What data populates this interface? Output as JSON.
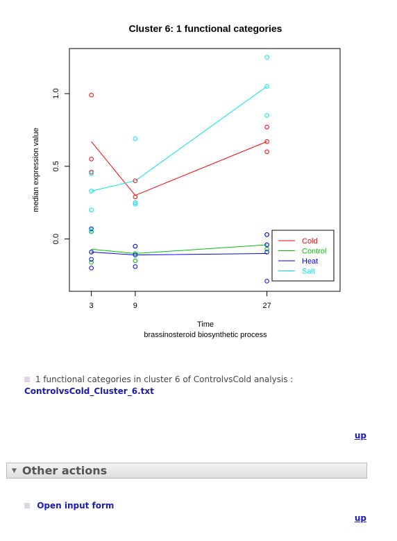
{
  "chart_data": {
    "type": "line",
    "title": "Cluster 6: 1 functional categories",
    "xlabel": "Time",
    "xsublabel": "brassinosteroid biosynthetic process",
    "ylabel": "median expression value",
    "x_ticks": [
      3,
      9,
      27
    ],
    "y_ticks": [
      0.0,
      0.5,
      1.0
    ],
    "y_tick_labels": [
      "0.0",
      "0.5",
      "1.0"
    ],
    "xlim": [
      0,
      37
    ],
    "ylim": [
      -0.36,
      1.31
    ],
    "legend_position": "bottom-right",
    "series": [
      {
        "name": "Cold",
        "color": "#ff0000",
        "line": [
          0.67,
          0.3,
          0.67
        ],
        "points": [
          [
            3,
            0.99
          ],
          [
            3,
            0.55
          ],
          [
            3,
            0.46
          ],
          [
            9,
            0.4
          ],
          [
            9,
            0.29
          ],
          [
            27,
            0.77
          ],
          [
            27,
            0.67
          ],
          [
            27,
            0.6
          ]
        ]
      },
      {
        "name": "Control",
        "color": "#00c000",
        "line": [
          -0.07,
          -0.1,
          -0.04
        ],
        "points": [
          [
            3,
            0.05
          ],
          [
            3,
            -0.09
          ],
          [
            3,
            -0.16
          ],
          [
            9,
            -0.05
          ],
          [
            9,
            -0.1
          ],
          [
            9,
            -0.15
          ],
          [
            27,
            0.03
          ],
          [
            27,
            -0.04
          ],
          [
            27,
            -0.07
          ]
        ]
      },
      {
        "name": "Heat",
        "color": "#0000ff",
        "line": [
          -0.09,
          -0.11,
          -0.1
        ],
        "points": [
          [
            3,
            0.07
          ],
          [
            3,
            -0.09
          ],
          [
            3,
            -0.14
          ],
          [
            3,
            -0.2
          ],
          [
            9,
            -0.05
          ],
          [
            9,
            -0.11
          ],
          [
            9,
            -0.19
          ],
          [
            27,
            0.03
          ],
          [
            27,
            -0.04
          ],
          [
            27,
            -0.09
          ],
          [
            27,
            -0.29
          ]
        ]
      },
      {
        "name": "Salt",
        "color": "#00e5ee",
        "line": [
          0.33,
          0.4,
          1.05
        ],
        "points": [
          [
            3,
            0.45
          ],
          [
            3,
            0.33
          ],
          [
            3,
            0.2
          ],
          [
            3,
            0.06
          ],
          [
            9,
            0.69
          ],
          [
            9,
            0.25
          ],
          [
            9,
            0.24
          ],
          [
            27,
            1.25
          ],
          [
            27,
            1.05
          ],
          [
            27,
            0.85
          ]
        ]
      }
    ]
  },
  "info": {
    "description": "1 functional categories in cluster 6 of ControlvsCold analysis :",
    "file_link": "ControlvsCold_Cluster_6.txt",
    "up_label": "up"
  },
  "section": {
    "toggle_icon": "triangle-down-icon",
    "title": "Other actions",
    "action_label": "Open input form",
    "up_label": "up"
  }
}
